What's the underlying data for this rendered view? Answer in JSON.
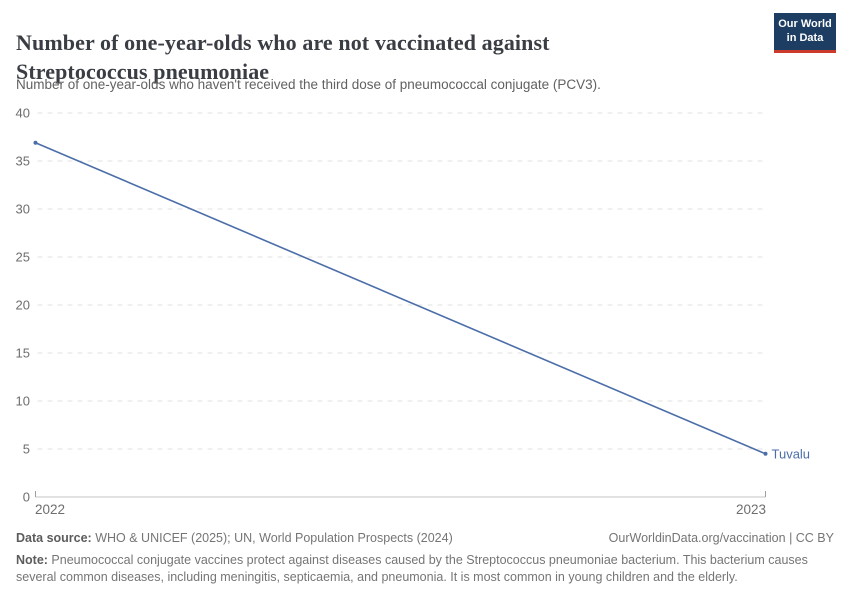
{
  "header": {
    "title": "Number of one-year-olds who are not vaccinated against Streptococcus pneumoniae",
    "subtitle": "Number of one-year-olds who haven't received the third dose of pneumococcal conjugate (PCV3).",
    "logo_line1": "Our World",
    "logo_line2": "in Data"
  },
  "chart_data": {
    "type": "line",
    "title": "Number of one-year-olds who are not vaccinated against Streptococcus pneumoniae",
    "x": [
      2022,
      2023
    ],
    "x_tick_labels": [
      "2022",
      "2023"
    ],
    "series": [
      {
        "name": "Tuvalu",
        "values": [
          36.9,
          4.5
        ],
        "color": "#4c6ea8"
      }
    ],
    "ylim": [
      0,
      40
    ],
    "yticks": [
      0,
      5,
      10,
      15,
      20,
      25,
      30,
      35,
      40
    ],
    "grid": "horizontal-dashed",
    "legend_position": "end-of-line-label"
  },
  "footer": {
    "datasource_label": "Data source:",
    "datasource_text": " WHO & UNICEF (2025); UN, World Population Prospects (2024)",
    "rights": "OurWorldinData.org/vaccination | CC BY",
    "note_label": "Note:",
    "note_text": " Pneumococcal conjugate vaccines protect against diseases caused by the Streptococcus pneumoniae bacterium. This bacterium causes several common diseases, including meningitis, septicaemia, and pneumonia. It is most common in young children and the elderly."
  },
  "colors": {
    "accent_blue": "#4c6ea8",
    "logo_background": "#1d3d63",
    "logo_red": "#cc3a2b",
    "gridline": "#e2e2e2",
    "axis_line": "#c4c4c4",
    "axis_end_tick": "#9e9e9e",
    "tick_label": "#6e6e6e",
    "title_text": "#3a3d43",
    "subtitle_text": "#616161",
    "footer_text": "#757575"
  }
}
